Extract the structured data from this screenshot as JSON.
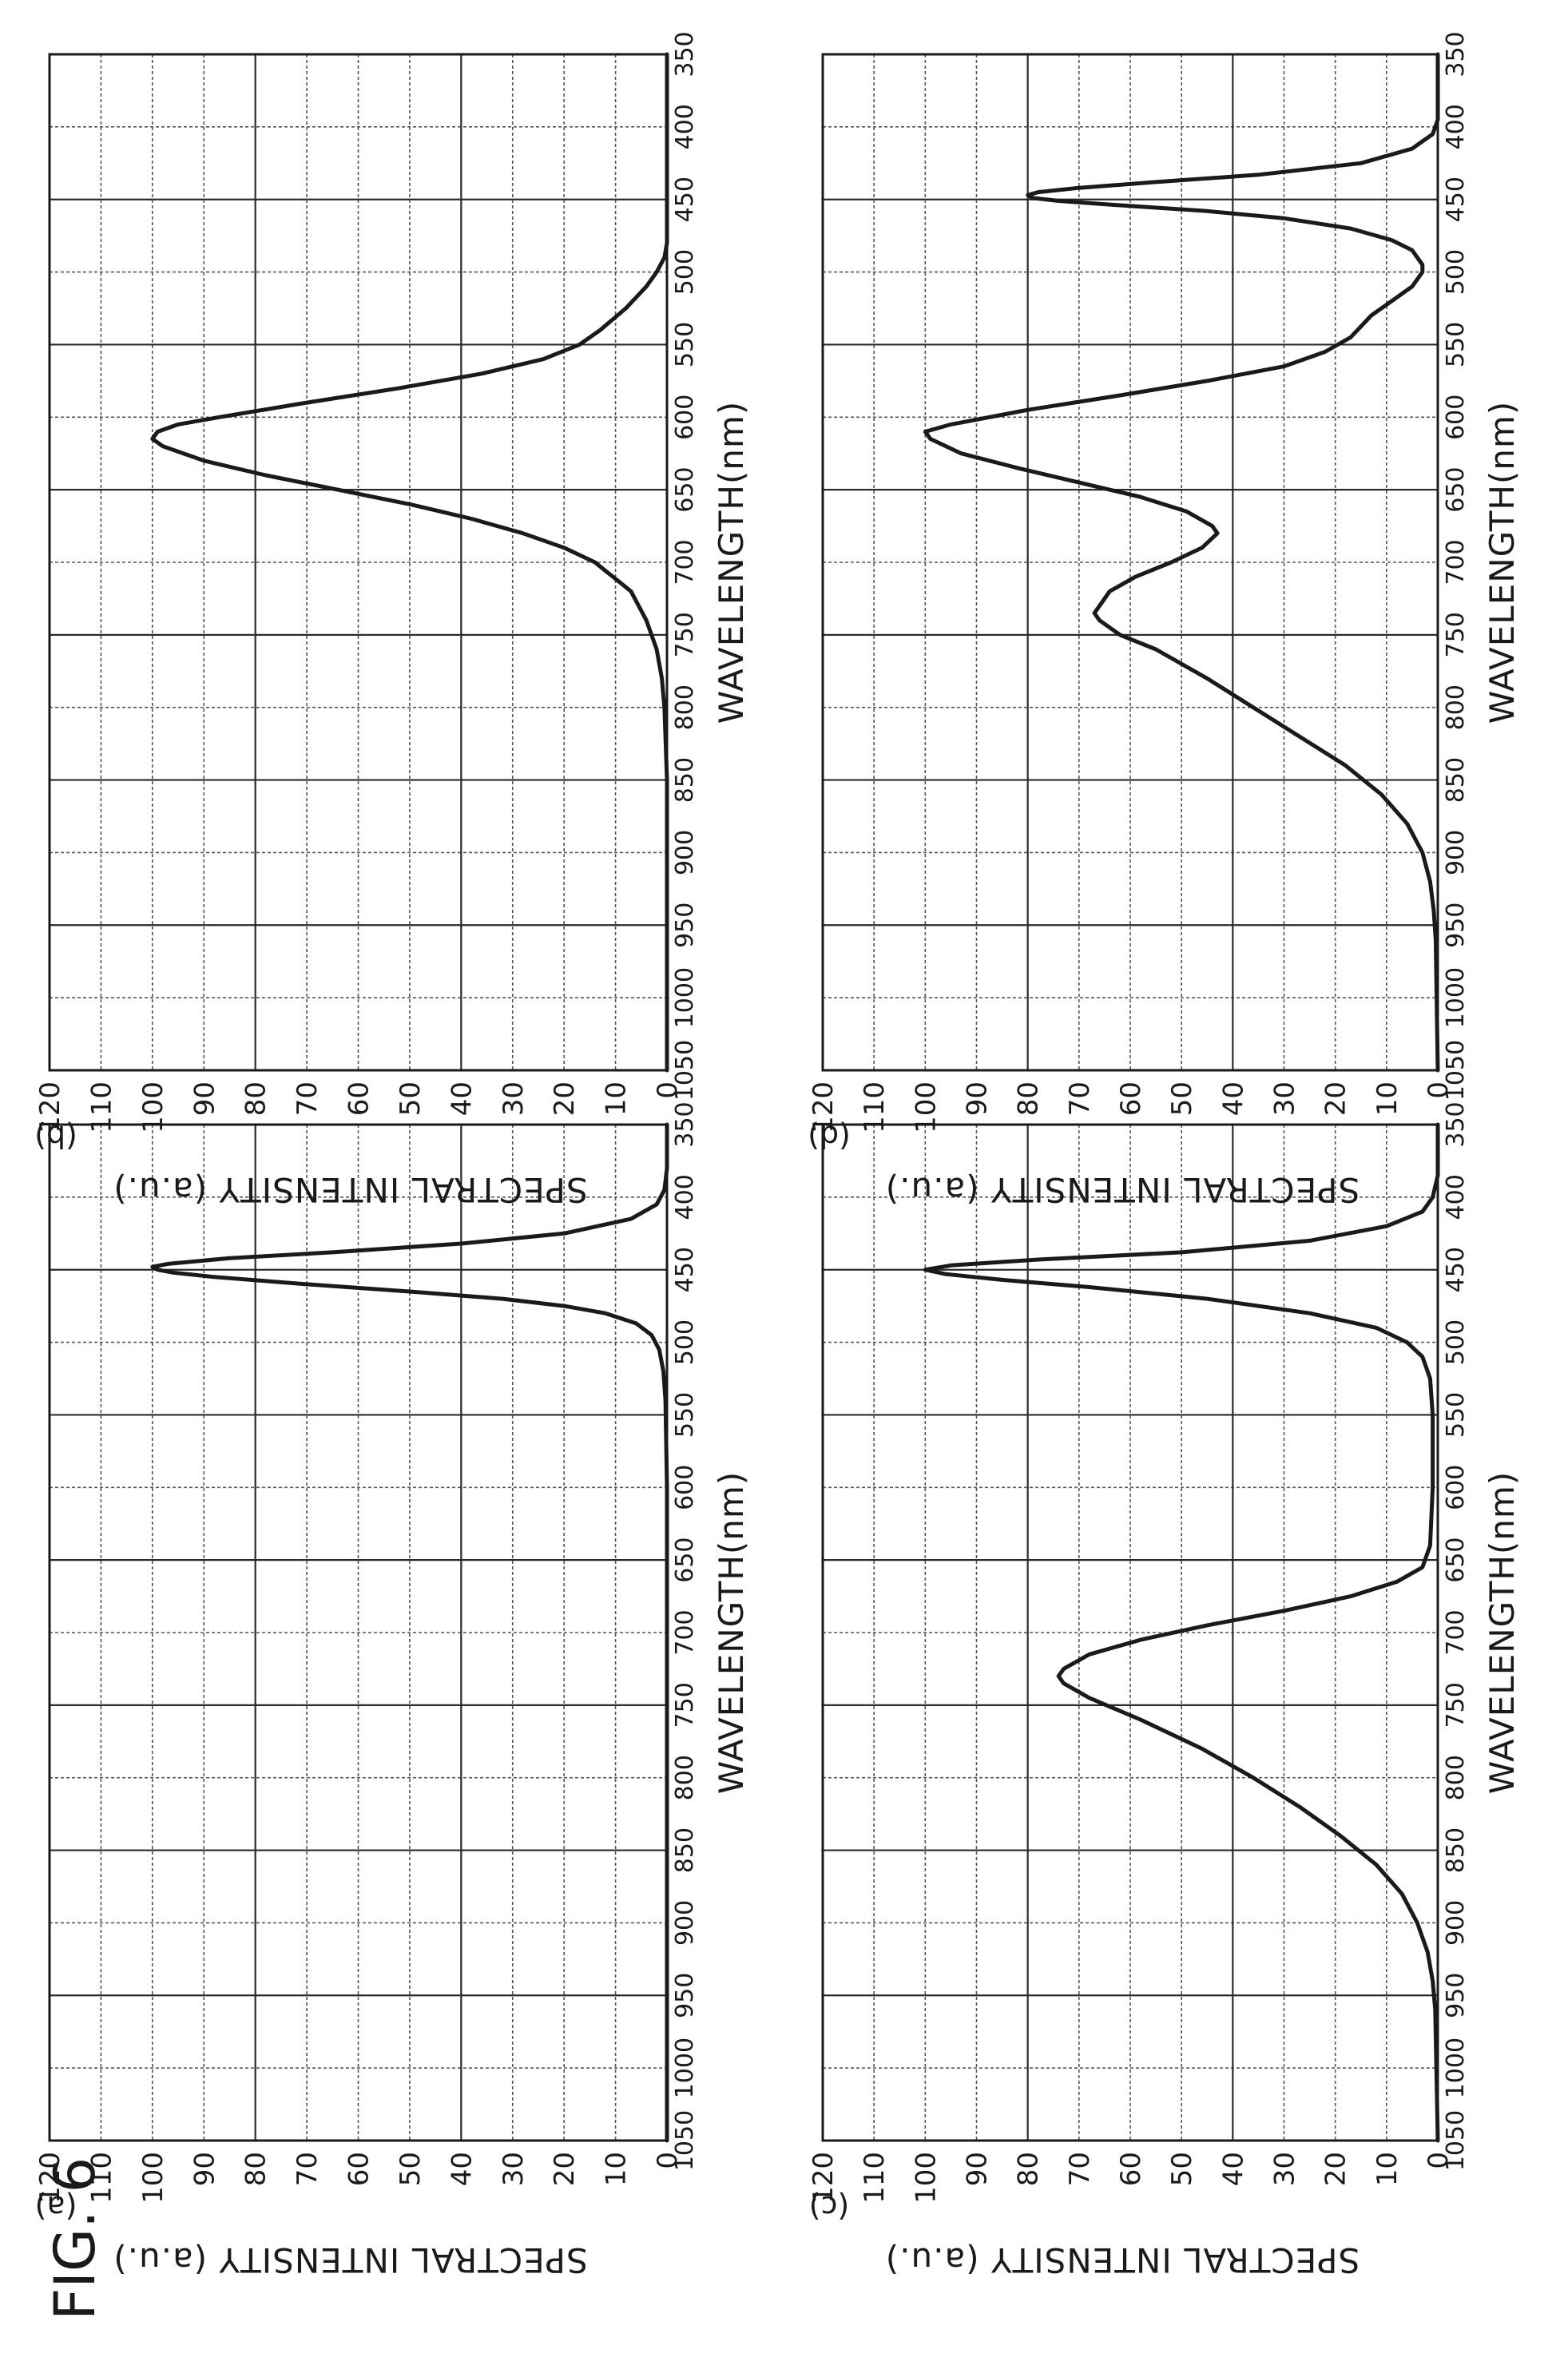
{
  "figure": {
    "title": "FIG. 6"
  },
  "chart_data": [
    {
      "id": "a",
      "panel_label": "(a)",
      "type": "line",
      "xlabel": "WAVELENGTH(nm)",
      "ylabel": "SPECTRAL INTENSITY (a.u.)",
      "xlim": [
        350,
        1050
      ],
      "ylim": [
        0,
        120
      ],
      "x_ticks": [
        350,
        400,
        450,
        500,
        550,
        600,
        650,
        700,
        750,
        800,
        850,
        900,
        950,
        1000,
        1050
      ],
      "y_ticks": [
        0,
        10,
        20,
        30,
        40,
        50,
        60,
        70,
        80,
        90,
        100,
        110,
        120
      ],
      "grid": true,
      "series": [
        {
          "x": [
            350,
            380,
            395,
            405,
            415,
            425,
            432,
            438,
            442,
            446,
            448,
            450,
            452,
            455,
            460,
            465,
            470,
            475,
            480,
            487,
            495,
            505,
            520,
            540,
            600,
            800,
            1050
          ],
          "y": [
            0,
            0,
            0.5,
            2,
            7,
            20,
            40,
            65,
            85,
            97,
            100,
            99,
            96,
            88,
            70,
            50,
            32,
            20,
            12,
            6,
            3,
            1.5,
            0.7,
            0.3,
            0,
            0,
            0
          ]
        }
      ]
    },
    {
      "id": "b",
      "panel_label": "(b)",
      "type": "line",
      "xlabel": "WAVELENGTH(nm)",
      "ylabel": "SPECTRAL INTENSITY (a.u.)",
      "xlim": [
        350,
        1050
      ],
      "ylim": [
        0,
        120
      ],
      "x_ticks": [
        350,
        400,
        450,
        500,
        550,
        600,
        650,
        700,
        750,
        800,
        850,
        900,
        950,
        1000,
        1050
      ],
      "y_ticks": [
        0,
        10,
        20,
        30,
        40,
        50,
        60,
        70,
        80,
        90,
        100,
        110,
        120
      ],
      "grid": true,
      "series": [
        {
          "x": [
            350,
            450,
            480,
            490,
            500,
            510,
            525,
            540,
            550,
            560,
            570,
            580,
            590,
            600,
            605,
            610,
            615,
            620,
            630,
            640,
            650,
            660,
            670,
            680,
            690,
            700,
            720,
            740,
            760,
            780,
            800,
            850,
            1050
          ],
          "y": [
            0,
            0,
            0,
            0.5,
            2,
            4,
            8,
            13,
            17,
            24,
            36,
            52,
            70,
            87,
            95,
            99,
            100,
            98,
            90,
            78,
            64,
            50,
            38,
            28,
            20,
            14,
            7,
            4,
            2,
            1,
            0.5,
            0,
            0
          ]
        }
      ]
    },
    {
      "id": "c",
      "panel_label": "(c)",
      "type": "line",
      "xlabel": "WAVELENGTH(nm)",
      "ylabel": "SPECTRAL INTENSITY (a.u.)",
      "xlim": [
        350,
        1050
      ],
      "ylim": [
        0,
        120
      ],
      "x_ticks": [
        350,
        400,
        450,
        500,
        550,
        600,
        650,
        700,
        750,
        800,
        850,
        900,
        950,
        1000,
        1050
      ],
      "y_ticks": [
        0,
        10,
        20,
        30,
        40,
        50,
        60,
        70,
        80,
        90,
        100,
        110,
        120
      ],
      "grid": true,
      "series": [
        {
          "x": [
            350,
            385,
            400,
            410,
            420,
            430,
            438,
            443,
            447,
            450,
            453,
            457,
            462,
            470,
            480,
            490,
            500,
            510,
            525,
            550,
            600,
            640,
            655,
            665,
            675,
            685,
            695,
            705,
            715,
            725,
            730,
            735,
            745,
            760,
            780,
            800,
            820,
            840,
            860,
            880,
            900,
            920,
            940,
            960,
            1050
          ],
          "y": [
            0,
            0,
            1,
            3,
            10,
            25,
            50,
            78,
            95,
            100,
            96,
            85,
            68,
            45,
            25,
            12,
            6,
            3,
            1.5,
            1,
            1,
            1.5,
            3,
            8,
            17,
            30,
            45,
            58,
            68,
            73,
            74,
            73,
            68,
            58,
            46,
            36,
            27,
            19,
            12,
            7,
            4,
            2,
            1,
            0.5,
            0
          ]
        }
      ]
    },
    {
      "id": "d",
      "panel_label": "(d)",
      "type": "line",
      "xlabel": "WAVELENGTH(nm)",
      "ylabel": "SPECTRAL INTENSITY (a.u.)",
      "xlim": [
        350,
        1050
      ],
      "ylim": [
        0,
        120
      ],
      "x_ticks": [
        350,
        400,
        450,
        500,
        550,
        600,
        650,
        700,
        750,
        800,
        850,
        900,
        950,
        1000,
        1050
      ],
      "y_ticks": [
        0,
        10,
        20,
        30,
        40,
        50,
        60,
        70,
        80,
        90,
        100,
        110,
        120
      ],
      "grid": true,
      "series": [
        {
          "x": [
            350,
            395,
            405,
            415,
            425,
            433,
            438,
            442,
            445,
            447,
            449,
            451,
            454,
            458,
            463,
            470,
            478,
            485,
            495,
            500,
            510,
            520,
            530,
            545,
            555,
            565,
            575,
            585,
            595,
            605,
            610,
            615,
            625,
            635,
            645,
            655,
            665,
            675,
            680,
            690,
            700,
            710,
            720,
            730,
            735,
            740,
            750,
            760,
            780,
            800,
            820,
            840,
            860,
            880,
            900,
            920,
            940,
            960,
            1050
          ],
          "y": [
            0,
            0,
            1,
            5,
            15,
            35,
            55,
            70,
            78,
            80,
            79,
            74,
            62,
            45,
            30,
            17,
            9,
            5,
            3,
            3,
            5,
            9,
            13,
            17,
            22,
            30,
            45,
            62,
            80,
            95,
            100,
            99,
            93,
            82,
            70,
            58,
            49,
            44,
            43,
            46,
            52,
            59,
            64,
            66,
            67,
            66,
            62,
            55,
            45,
            36,
            27,
            18,
            11,
            6,
            3,
            1.5,
            0.8,
            0.4,
            0
          ]
        }
      ]
    }
  ]
}
